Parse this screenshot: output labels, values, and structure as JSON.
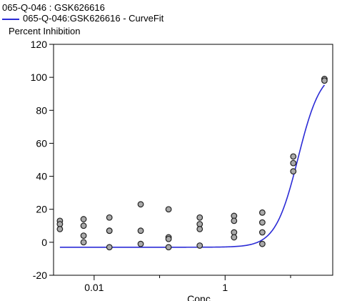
{
  "legend": {
    "title": "065-Q-046  : GSK626616",
    "fit_label": "065-Q-046:GSK626616 - CurveFit"
  },
  "colors": {
    "fit_line": "#2b2bd6",
    "marker_fill": "#a9a9a9",
    "marker_stroke": "#222222",
    "axis": "#000000"
  },
  "chart_data": {
    "type": "scatter",
    "title": "",
    "xlabel": "Conc",
    "ylabel": "Percent Inhibition",
    "x_scale": "log",
    "xlim": [
      0.0024,
      44
    ],
    "ylim": [
      -20,
      120
    ],
    "y_ticks": [
      -20,
      0,
      20,
      40,
      60,
      80,
      100,
      120
    ],
    "x_ticks": [
      {
        "value": 0.01,
        "label": "0.01"
      },
      {
        "value": 1,
        "label": "1"
      }
    ],
    "x_minor_ticks": [
      0.1,
      10
    ],
    "grid": false,
    "series": [
      {
        "name": "065-Q-046  : GSK626616",
        "mode": "markers",
        "points": [
          {
            "x": 0.003,
            "y": 13
          },
          {
            "x": 0.003,
            "y": 11
          },
          {
            "x": 0.003,
            "y": 8
          },
          {
            "x": 0.0069,
            "y": 14
          },
          {
            "x": 0.0069,
            "y": 10
          },
          {
            "x": 0.0069,
            "y": 4
          },
          {
            "x": 0.0069,
            "y": 0
          },
          {
            "x": 0.0171,
            "y": 15
          },
          {
            "x": 0.0171,
            "y": 7
          },
          {
            "x": 0.0171,
            "y": 7
          },
          {
            "x": 0.0171,
            "y": -3
          },
          {
            "x": 0.0514,
            "y": 23
          },
          {
            "x": 0.0514,
            "y": 7
          },
          {
            "x": 0.0514,
            "y": -1
          },
          {
            "x": 0.137,
            "y": 20
          },
          {
            "x": 0.137,
            "y": 3
          },
          {
            "x": 0.137,
            "y": 2
          },
          {
            "x": 0.137,
            "y": -3
          },
          {
            "x": 0.41,
            "y": 15
          },
          {
            "x": 0.41,
            "y": 11
          },
          {
            "x": 0.41,
            "y": 8
          },
          {
            "x": 0.41,
            "y": -2
          },
          {
            "x": 1.37,
            "y": 16
          },
          {
            "x": 1.37,
            "y": 13
          },
          {
            "x": 1.37,
            "y": 6
          },
          {
            "x": 1.37,
            "y": 3
          },
          {
            "x": 3.7,
            "y": 18
          },
          {
            "x": 3.7,
            "y": 12
          },
          {
            "x": 3.7,
            "y": 6
          },
          {
            "x": 3.7,
            "y": -1
          },
          {
            "x": 11.0,
            "y": 52
          },
          {
            "x": 11.0,
            "y": 48
          },
          {
            "x": 11.0,
            "y": 43
          },
          {
            "x": 32.9,
            "y": 99
          },
          {
            "x": 32.9,
            "y": 98
          }
        ]
      },
      {
        "name": "065-Q-046:GSK626616 - CurveFit",
        "mode": "line",
        "model": "4PL",
        "bottom": -3,
        "top": 105,
        "ec50": 13.0,
        "hill": 2.5,
        "x_range": [
          0.003,
          32.9
        ]
      }
    ]
  }
}
